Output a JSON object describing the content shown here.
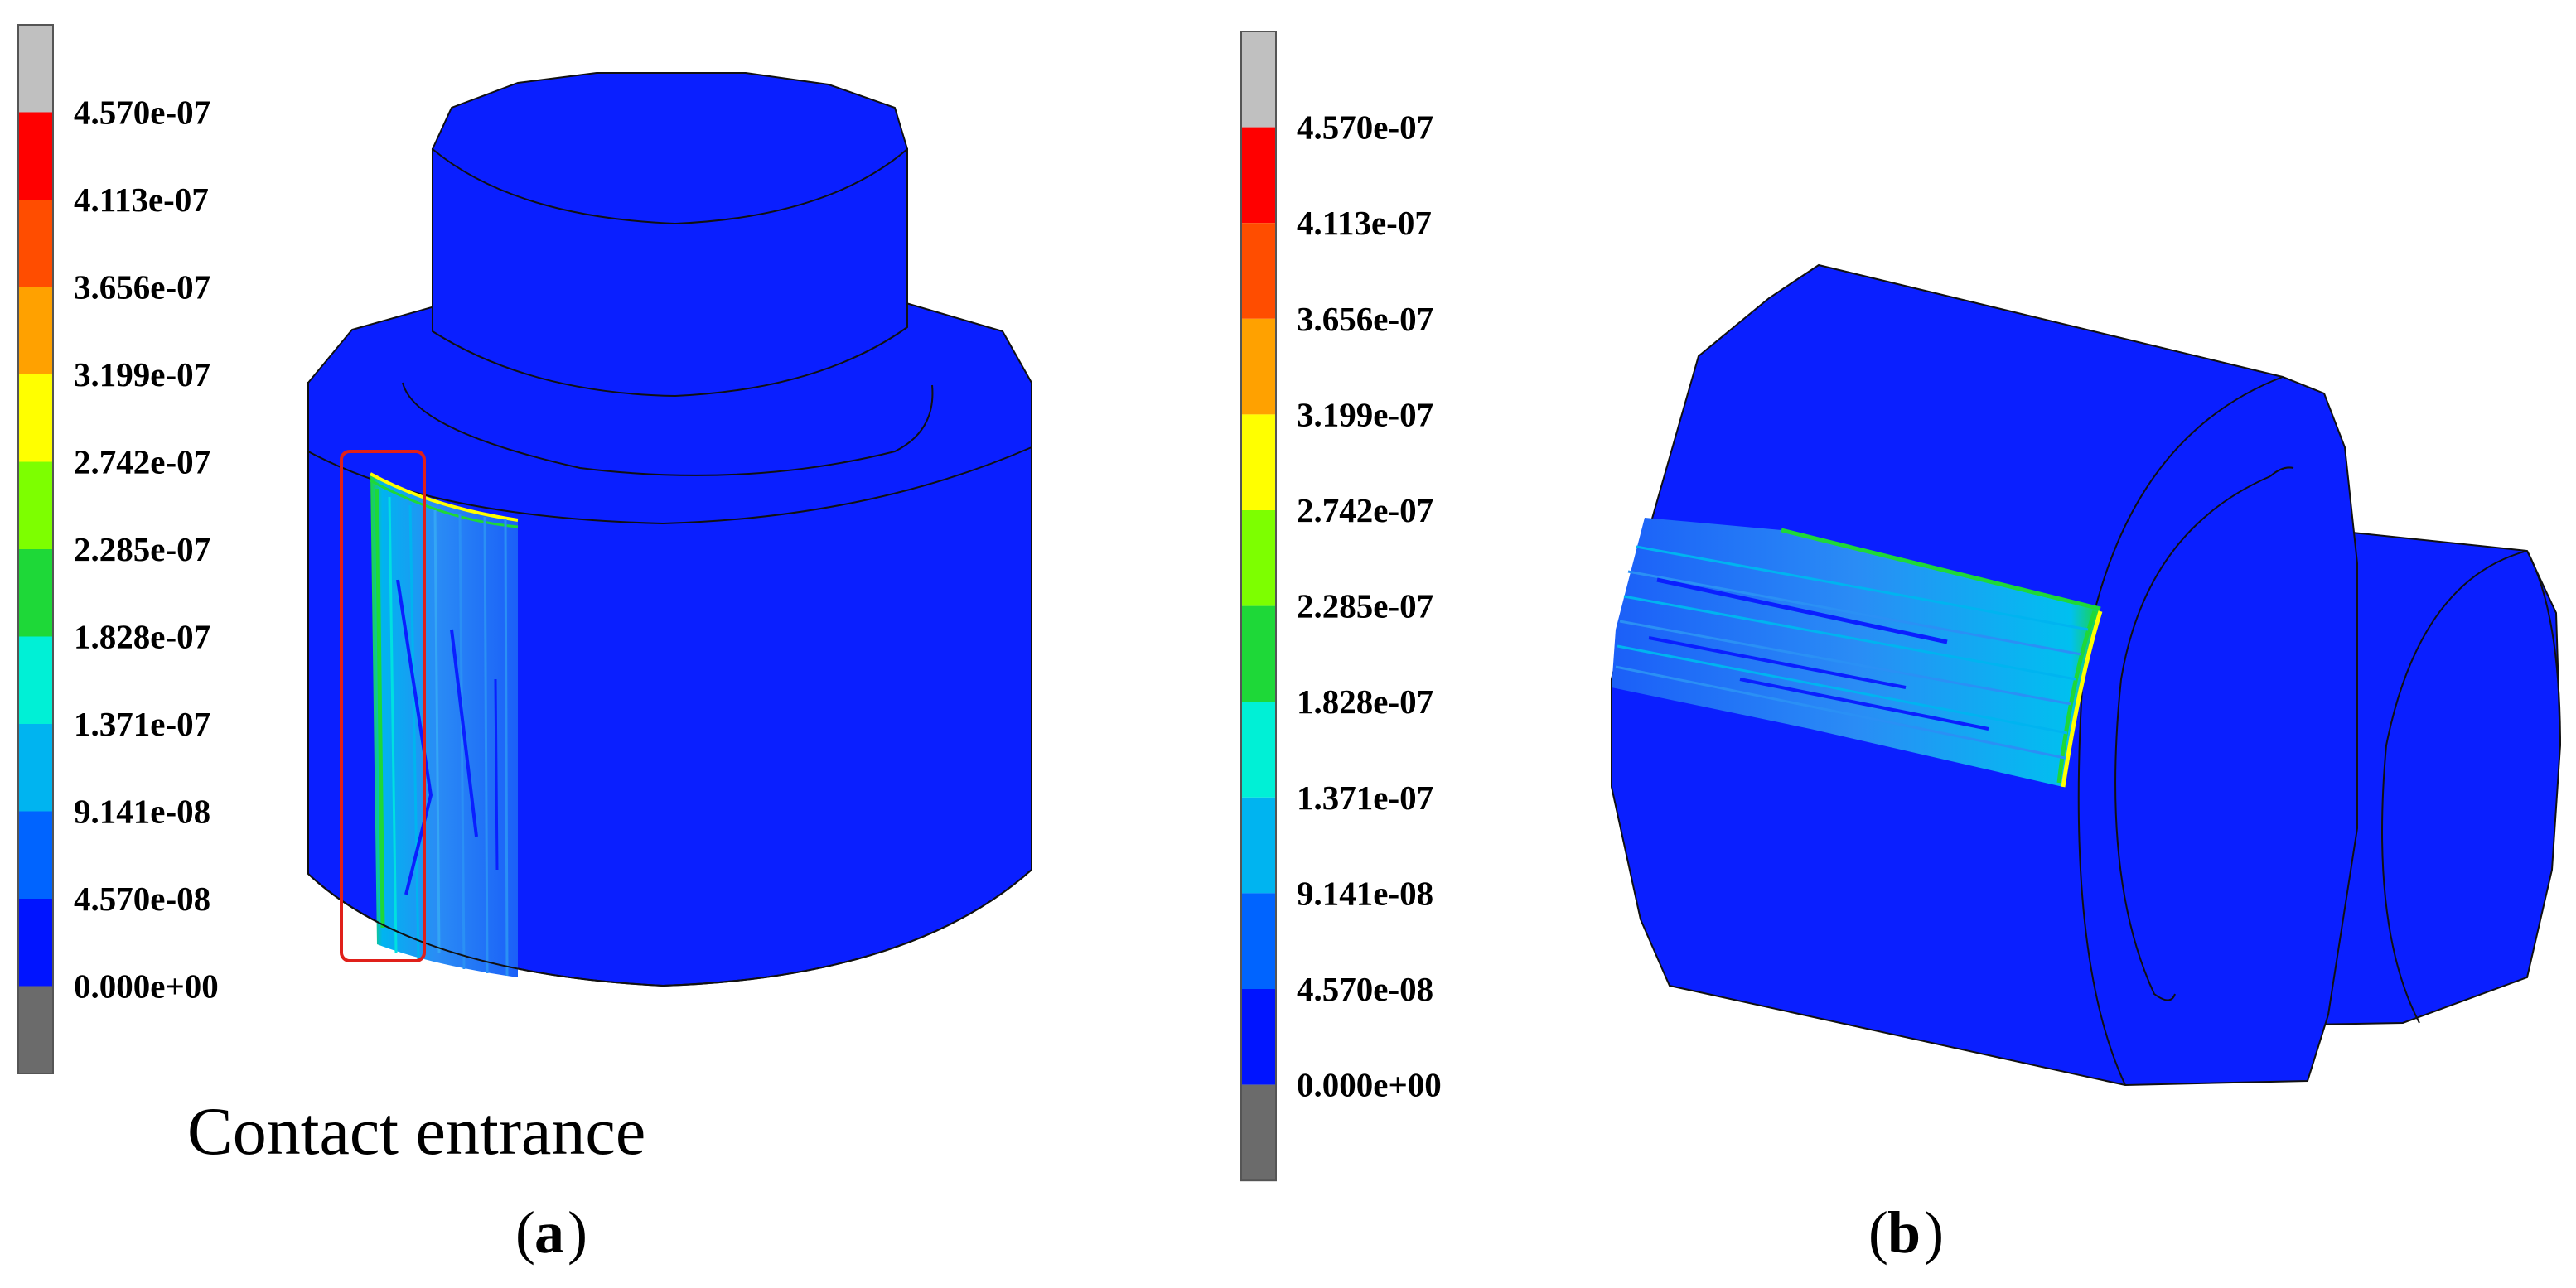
{
  "colorbar": {
    "labels": [
      "4.570e-07",
      "4.113e-07",
      "3.656e-07",
      "3.199e-07",
      "2.742e-07",
      "2.285e-07",
      "1.828e-07",
      "1.371e-07",
      "9.141e-08",
      "4.570e-08",
      "0.000e+00"
    ],
    "colors": [
      "#c0c0c0",
      "#ff0000",
      "#ff4d00",
      "#ffa100",
      "#ffff00",
      "#7dff00",
      "#1ed838",
      "#00f0d6",
      "#00b4f0",
      "#0064ff",
      "#0014ff",
      "#6b6b6b"
    ]
  },
  "panel_a": {
    "annotation": "Contact entrance",
    "letter": "a"
  },
  "panel_b": {
    "letter": "b"
  },
  "colors": {
    "body_blue": "#0a1fff",
    "edge": "#111111",
    "highlight_box": "#e0201a"
  }
}
